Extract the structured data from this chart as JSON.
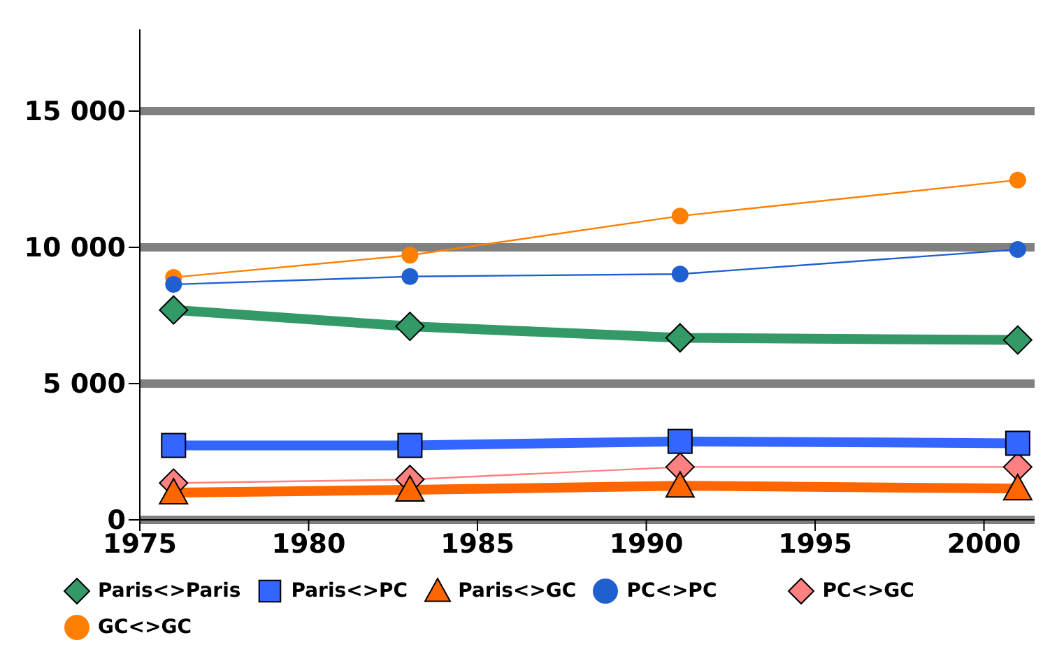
{
  "chart_data": {
    "type": "line",
    "x": [
      1976,
      1983,
      1991,
      2001
    ],
    "series": [
      {
        "name": "Paris<>Paris",
        "color": "#339966",
        "marker": "diamond",
        "values": [
          7700,
          7100,
          6680,
          6600
        ]
      },
      {
        "name": "Paris<>PC",
        "color": "#3366ff",
        "marker": "square",
        "values": [
          2730,
          2730,
          2880,
          2810
        ]
      },
      {
        "name": "Paris<>GC",
        "color": "#ff6600",
        "marker": "triangle",
        "values": [
          1000,
          1100,
          1250,
          1150
        ]
      },
      {
        "name": "PC<>PC",
        "color": "#1f5fd0",
        "marker": "circle",
        "values": [
          8640,
          8930,
          9020,
          9920
        ]
      },
      {
        "name": "PC<>GC",
        "color": "#ff8080",
        "marker": "diamond",
        "values": [
          1350,
          1480,
          1940,
          1940
        ]
      },
      {
        "name": "GC<>GC",
        "color": "#ff8000",
        "marker": "circle",
        "values": [
          8900,
          9710,
          11150,
          12470
        ]
      }
    ],
    "xlim": [
      1975,
      2001.5
    ],
    "xticks": [
      1975,
      1980,
      1985,
      1990,
      1995,
      2000
    ],
    "ylim": [
      0,
      18000
    ],
    "yticks": [
      0,
      {
        "value": 5000,
        "label": "5 000"
      },
      {
        "value": 10000,
        "label": "10 000"
      },
      {
        "value": 15000,
        "label": "15 000"
      }
    ],
    "grid": "y",
    "legend": "bottom",
    "line_style": "solid"
  }
}
